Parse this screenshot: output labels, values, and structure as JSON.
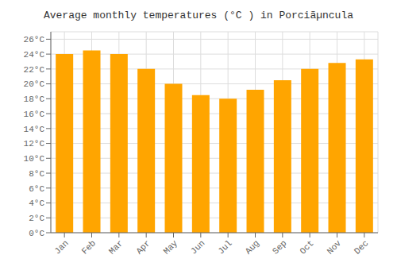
{
  "chart_data": {
    "type": "bar",
    "title": "Average monthly temperatures (°C ) in Porciãµncula",
    "categories": [
      "Jan",
      "Feb",
      "Mar",
      "Apr",
      "May",
      "Jun",
      "Jul",
      "Aug",
      "Sep",
      "Oct",
      "Nov",
      "Dec"
    ],
    "values": [
      24.0,
      24.5,
      24.0,
      22.0,
      20.0,
      18.5,
      18.0,
      19.2,
      20.5,
      22.0,
      22.8,
      23.3
    ],
    "color": "#FFA500",
    "ylim": [
      0,
      27
    ],
    "yticks": [
      {
        "value": 0,
        "label": "0°C"
      },
      {
        "value": 2,
        "label": "2°C"
      },
      {
        "value": 4,
        "label": "4°C"
      },
      {
        "value": 6,
        "label": "6°C"
      },
      {
        "value": 8,
        "label": "8°C"
      },
      {
        "value": 10,
        "label": "10°C"
      },
      {
        "value": 12,
        "label": "12°C"
      },
      {
        "value": 14,
        "label": "14°C"
      },
      {
        "value": 16,
        "label": "16°C"
      },
      {
        "value": 18,
        "label": "18°C"
      },
      {
        "value": 20,
        "label": "20°C"
      },
      {
        "value": 22,
        "label": "22°C"
      },
      {
        "value": 24,
        "label": "24°C"
      },
      {
        "value": 26,
        "label": "26°C"
      }
    ],
    "grid": true
  }
}
